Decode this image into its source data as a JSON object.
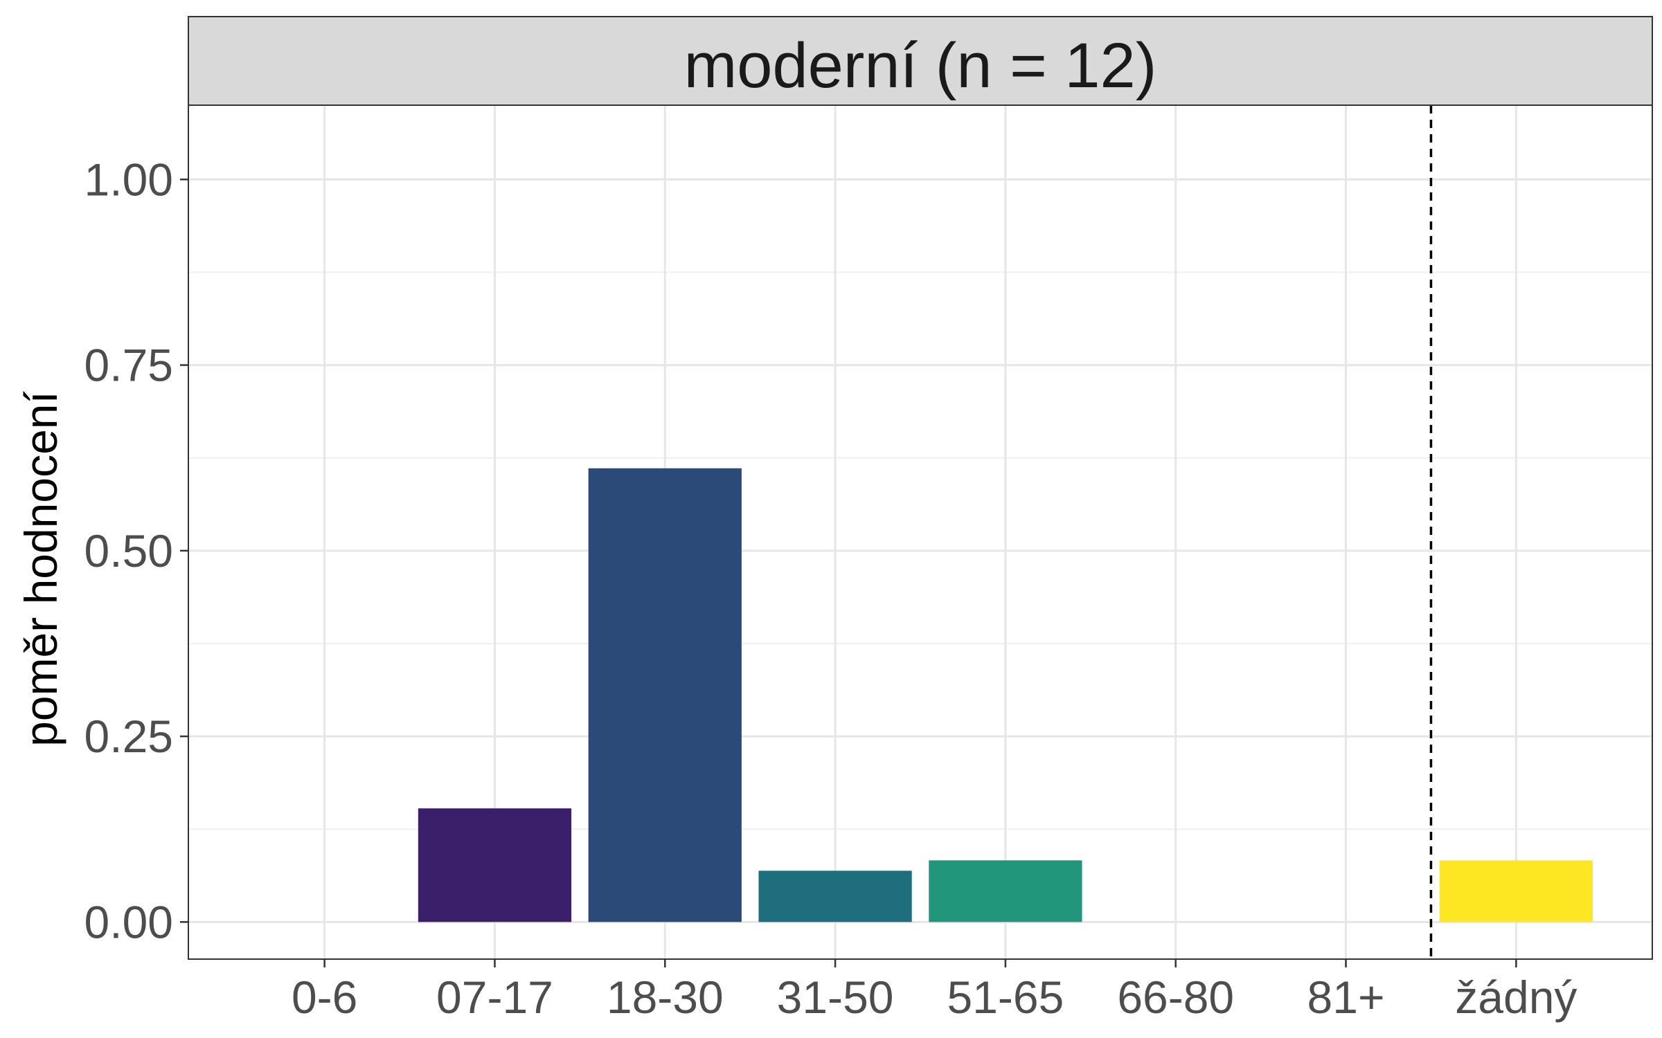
{
  "chart_data": {
    "type": "bar",
    "facet_title": "moderní (n = 12)",
    "ylabel": "poměr hodnocení",
    "xlabel": "",
    "categories": [
      "0-6",
      "07-17",
      "18-30",
      "31-50",
      "51-65",
      "66-80",
      "81+",
      "žádný"
    ],
    "values": [
      0,
      0.153,
      0.611,
      0.069,
      0.083,
      0,
      0,
      0.083
    ],
    "colors": [
      "#440154",
      "#3B1F6A",
      "#2C4A78",
      "#1F6E7E",
      "#21967A",
      "#4CB86E",
      "#93D145",
      "#FDE723"
    ],
    "ylim": [
      -0.05,
      1.1
    ],
    "yticks": [
      0,
      0.25,
      0.5,
      0.75,
      1.0
    ],
    "ytick_labels": [
      "0.00",
      "0.25",
      "0.50",
      "0.75",
      "1.00"
    ],
    "reference_line": {
      "after_category": "81+",
      "style": "dashed"
    },
    "grid": true,
    "legend": "none"
  }
}
